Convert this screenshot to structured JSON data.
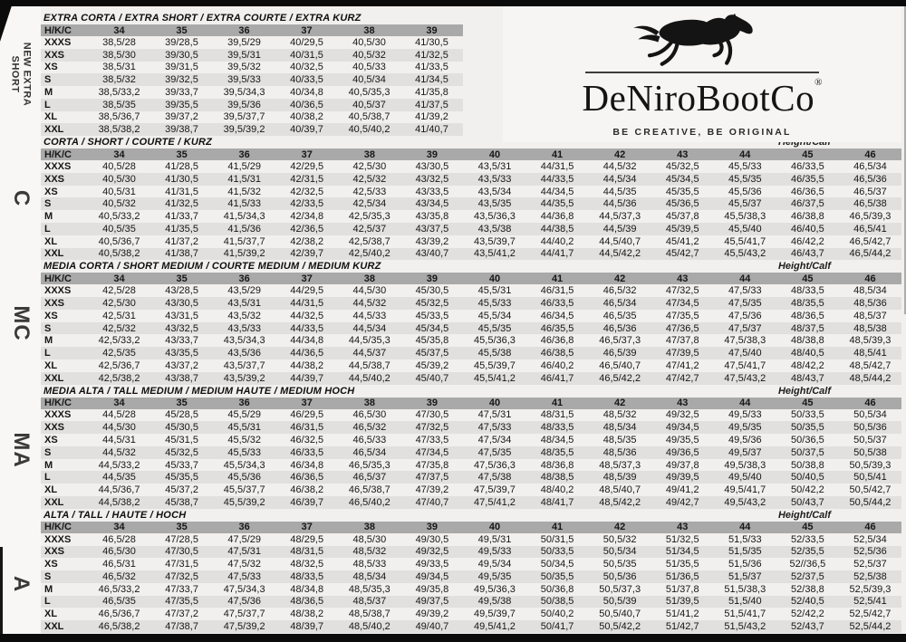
{
  "sidebar": {
    "items": [
      {
        "label": "NEW EXTRA SHORT",
        "line1": "NEW EXTRA",
        "line2": "SHORT"
      },
      {
        "label": "C"
      },
      {
        "label": "MC"
      },
      {
        "label": "MA"
      },
      {
        "label": "A"
      }
    ]
  },
  "logo": {
    "brand": "DeNiroBootCo",
    "registered": "®",
    "tagline": "BE CREATIVE, BE ORIGINAL"
  },
  "table": {
    "corner_label": "H/K/C",
    "row_labels": [
      "XXXS",
      "XXS",
      "XS",
      "S",
      "M",
      "L",
      "XL",
      "XXL"
    ],
    "sections": [
      {
        "title": "EXTRA CORTA / EXTRA SHORT / EXTRA COURTE / EXTRA KURZ",
        "height_calf": null,
        "sizes": [
          "34",
          "35",
          "36",
          "37",
          "38",
          "39"
        ],
        "rows": [
          {
            "label": "XXXS",
            "values": [
              "38,5/28",
              "39/28,5",
              "39,5/29",
              "40/29,5",
              "40,5/30",
              "41/30,5"
            ]
          },
          {
            "label": "XXS",
            "values": [
              "38,5/30",
              "39/30,5",
              "39,5/31",
              "40/31,5",
              "40,5/32",
              "41/32,5"
            ]
          },
          {
            "label": "XS",
            "values": [
              "38,5/31",
              "39/31,5",
              "39,5/32",
              "40/32,5",
              "40,5/33",
              "41/33,5"
            ]
          },
          {
            "label": "S",
            "values": [
              "38,5/32",
              "39/32,5",
              "39,5/33",
              "40/33,5",
              "40,5/34",
              "41/34,5"
            ]
          },
          {
            "label": "M",
            "values": [
              "38,5/33,2",
              "39/33,7",
              "39,5/34,3",
              "40/34,8",
              "40,5/35,3",
              "41/35,8"
            ]
          },
          {
            "label": "L",
            "values": [
              "38,5/35",
              "39/35,5",
              "39,5/36",
              "40/36,5",
              "40,5/37",
              "41/37,5"
            ]
          },
          {
            "label": "XL",
            "values": [
              "38,5/36,7",
              "39/37,2",
              "39,5/37,7",
              "40/38,2",
              "40,5/38,7",
              "41/39,2"
            ]
          },
          {
            "label": "XXL",
            "values": [
              "38,5/38,2",
              "39/38,7",
              "39,5/39,2",
              "40/39,7",
              "40,5/40,2",
              "41/40,7"
            ]
          }
        ]
      },
      {
        "title": "CORTA / SHORT / COURTE / KURZ",
        "height_calf": "Height/Calf",
        "sizes": [
          "34",
          "35",
          "36",
          "37",
          "38",
          "39",
          "40",
          "41",
          "42",
          "43",
          "44",
          "45",
          "46"
        ],
        "rows": [
          {
            "label": "XXXS",
            "values": [
              "40,5/28",
              "41/28,5",
              "41,5/29",
              "42/29,5",
              "42,5/30",
              "43/30,5",
              "43,5/31",
              "44/31,5",
              "44,5/32",
              "45/32,5",
              "45,5/33",
              "46/33,5",
              "46,5/34"
            ]
          },
          {
            "label": "XXS",
            "values": [
              "40,5/30",
              "41/30,5",
              "41,5/31",
              "42/31,5",
              "42,5/32",
              "43/32,5",
              "43,5/33",
              "44/33,5",
              "44,5/34",
              "45/34,5",
              "45,5/35",
              "46/35,5",
              "46,5/36"
            ]
          },
          {
            "label": "XS",
            "values": [
              "40,5/31",
              "41/31,5",
              "41,5/32",
              "42/32,5",
              "42,5/33",
              "43/33,5",
              "43,5/34",
              "44/34,5",
              "44,5/35",
              "45/35,5",
              "45,5/36",
              "46/36,5",
              "46,5/37"
            ]
          },
          {
            "label": "S",
            "values": [
              "40,5/32",
              "41/32,5",
              "41,5/33",
              "42/33,5",
              "42,5/34",
              "43/34,5",
              "43,5/35",
              "44/35,5",
              "44,5/36",
              "45/36,5",
              "45,5/37",
              "46/37,5",
              "46,5/38"
            ]
          },
          {
            "label": "M",
            "values": [
              "40,5/33,2",
              "41/33,7",
              "41,5/34,3",
              "42/34,8",
              "42,5/35,3",
              "43/35,8",
              "43,5/36,3",
              "44/36,8",
              "44,5/37,3",
              "45/37,8",
              "45,5/38,3",
              "46/38,8",
              "46,5/39,3"
            ]
          },
          {
            "label": "L",
            "values": [
              "40,5/35",
              "41/35,5",
              "41,5/36",
              "42/36,5",
              "42,5/37",
              "43/37,5",
              "43,5/38",
              "44/38,5",
              "44,5/39",
              "45/39,5",
              "45,5/40",
              "46/40,5",
              "46,5/41"
            ]
          },
          {
            "label": "XL",
            "values": [
              "40,5/36,7",
              "41/37,2",
              "41,5/37,7",
              "42/38,2",
              "42,5/38,7",
              "43/39,2",
              "43,5/39,7",
              "44/40,2",
              "44,5/40,7",
              "45/41,2",
              "45,5/41,7",
              "46/42,2",
              "46,5/42,7"
            ]
          },
          {
            "label": "XXL",
            "values": [
              "40,5/38,2",
              "41/38,7",
              "41,5/39,2",
              "42/39,7",
              "42,5/40,2",
              "43/40,7",
              "43,5/41,2",
              "44/41,7",
              "44,5/42,2",
              "45/42,7",
              "45,5/43,2",
              "46/43,7",
              "46,5/44,2"
            ]
          }
        ]
      },
      {
        "title": "MEDIA CORTA / SHORT MEDIUM / COURTE MEDIUM / MEDIUM KURZ",
        "height_calf": "Height/Calf",
        "sizes": [
          "34",
          "35",
          "36",
          "37",
          "38",
          "39",
          "40",
          "41",
          "42",
          "43",
          "44",
          "45",
          "46"
        ],
        "rows": [
          {
            "label": "XXXS",
            "values": [
              "42,5/28",
              "43/28,5",
              "43,5/29",
              "44/29,5",
              "44,5/30",
              "45/30,5",
              "45,5/31",
              "46/31,5",
              "46,5/32",
              "47/32,5",
              "47,5/33",
              "48/33,5",
              "48,5/34"
            ]
          },
          {
            "label": "XXS",
            "values": [
              "42,5/30",
              "43/30,5",
              "43,5/31",
              "44/31,5",
              "44,5/32",
              "45/32,5",
              "45,5/33",
              "46/33,5",
              "46,5/34",
              "47/34,5",
              "47,5/35",
              "48/35,5",
              "48,5/36"
            ]
          },
          {
            "label": "XS",
            "values": [
              "42,5/31",
              "43/31,5",
              "43,5/32",
              "44/32,5",
              "44,5/33",
              "45/33,5",
              "45,5/34",
              "46/34,5",
              "46,5/35",
              "47/35,5",
              "47,5/36",
              "48/36,5",
              "48,5/37"
            ]
          },
          {
            "label": "S",
            "values": [
              "42,5/32",
              "43/32,5",
              "43,5/33",
              "44/33,5",
              "44,5/34",
              "45/34,5",
              "45,5/35",
              "46/35,5",
              "46,5/36",
              "47/36,5",
              "47,5/37",
              "48/37,5",
              "48,5/38"
            ]
          },
          {
            "label": "M",
            "values": [
              "42,5/33,2",
              "43/33,7",
              "43,5/34,3",
              "44/34,8",
              "44,5/35,3",
              "45/35,8",
              "45,5/36,3",
              "46/36,8",
              "46,5/37,3",
              "47/37,8",
              "47,5/38,3",
              "48/38,8",
              "48,5/39,3"
            ]
          },
          {
            "label": "L",
            "values": [
              "42,5/35",
              "43/35,5",
              "43,5/36",
              "44/36,5",
              "44,5/37",
              "45/37,5",
              "45,5/38",
              "46/38,5",
              "46,5/39",
              "47/39,5",
              "47,5/40",
              "48/40,5",
              "48,5/41"
            ]
          },
          {
            "label": "XL",
            "values": [
              "42,5/36,7",
              "43/37,2",
              "43,5/37,7",
              "44/38,2",
              "44,5/38,7",
              "45/39,2",
              "45,5/39,7",
              "46/40,2",
              "46,5/40,7",
              "47/41,2",
              "47,5/41,7",
              "48/42,2",
              "48,5/42,7"
            ]
          },
          {
            "label": "XXL",
            "values": [
              "42,5/38,2",
              "43/38,7",
              "43,5/39,2",
              "44/39,7",
              "44,5/40,2",
              "45/40,7",
              "45,5/41,2",
              "46/41,7",
              "46,5/42,2",
              "47/42,7",
              "47,5/43,2",
              "48/43,7",
              "48,5/44,2"
            ]
          }
        ]
      },
      {
        "title": "MEDIA ALTA / TALL MEDIUM / MEDIUM HAUTE / MEDIUM HOCH",
        "height_calf": "Height/Calf",
        "sizes": [
          "34",
          "35",
          "36",
          "37",
          "38",
          "39",
          "40",
          "41",
          "42",
          "43",
          "44",
          "45",
          "46"
        ],
        "rows": [
          {
            "label": "XXXS",
            "values": [
              "44,5/28",
              "45/28,5",
              "45,5/29",
              "46/29,5",
              "46,5/30",
              "47/30,5",
              "47,5/31",
              "48/31,5",
              "48,5/32",
              "49/32,5",
              "49,5/33",
              "50/33,5",
              "50,5/34"
            ]
          },
          {
            "label": "XXS",
            "values": [
              "44,5/30",
              "45/30,5",
              "45,5/31",
              "46/31,5",
              "46,5/32",
              "47/32,5",
              "47,5/33",
              "48/33,5",
              "48,5/34",
              "49/34,5",
              "49,5/35",
              "50/35,5",
              "50,5/36"
            ]
          },
          {
            "label": "XS",
            "values": [
              "44,5/31",
              "45/31,5",
              "45,5/32",
              "46/32,5",
              "46,5/33",
              "47/33,5",
              "47,5/34",
              "48/34,5",
              "48,5/35",
              "49/35,5",
              "49,5/36",
              "50/36,5",
              "50,5/37"
            ]
          },
          {
            "label": "S",
            "values": [
              "44,5/32",
              "45/32,5",
              "45,5/33",
              "46/33,5",
              "46,5/34",
              "47/34,5",
              "47,5/35",
              "48/35,5",
              "48,5/36",
              "49/36,5",
              "49,5/37",
              "50/37,5",
              "50,5/38"
            ]
          },
          {
            "label": "M",
            "values": [
              "44,5/33,2",
              "45/33,7",
              "45,5/34,3",
              "46/34,8",
              "46,5/35,3",
              "47/35,8",
              "47,5/36,3",
              "48/36,8",
              "48,5/37,3",
              "49/37,8",
              "49,5/38,3",
              "50/38,8",
              "50,5/39,3"
            ]
          },
          {
            "label": "L",
            "values": [
              "44,5/35",
              "45/35,5",
              "45,5/36",
              "46/36,5",
              "46,5/37",
              "47/37,5",
              "47,5/38",
              "48/38,5",
              "48,5/39",
              "49/39,5",
              "49,5/40",
              "50/40,5",
              "50,5/41"
            ]
          },
          {
            "label": "XL",
            "values": [
              "44,5/36,7",
              "45/37,2",
              "45,5/37,7",
              "46/38,2",
              "46,5/38,7",
              "47/39,2",
              "47,5/39,7",
              "48/40,2",
              "48,5/40,7",
              "49/41,2",
              "49,5/41,7",
              "50/42,2",
              "50,5/42,7"
            ]
          },
          {
            "label": "XXL",
            "values": [
              "44,5/38,2",
              "45/38,7",
              "45,5/39,2",
              "46/39,7",
              "46,5/40,2",
              "47/40,7",
              "47,5/41,2",
              "48/41,7",
              "48,5/42,2",
              "49/42,7",
              "49,5/43,2",
              "50/43,7",
              "50,5/44,2"
            ]
          }
        ]
      },
      {
        "title": "ALTA / TALL / HAUTE / HOCH",
        "height_calf": "Height/Calf",
        "sizes": [
          "34",
          "35",
          "36",
          "37",
          "38",
          "39",
          "40",
          "41",
          "42",
          "43",
          "44",
          "45",
          "46"
        ],
        "rows": [
          {
            "label": "XXXS",
            "values": [
              "46,5/28",
              "47/28,5",
              "47,5/29",
              "48/29,5",
              "48,5/30",
              "49/30,5",
              "49,5/31",
              "50/31,5",
              "50,5/32",
              "51/32,5",
              "51,5/33",
              "52/33,5",
              "52,5/34"
            ]
          },
          {
            "label": "XXS",
            "values": [
              "46,5/30",
              "47/30,5",
              "47,5/31",
              "48/31,5",
              "48,5/32",
              "49/32,5",
              "49,5/33",
              "50/33,5",
              "50,5/34",
              "51/34,5",
              "51,5/35",
              "52/35,5",
              "52,5/36"
            ]
          },
          {
            "label": "XS",
            "values": [
              "46,5/31",
              "47/31,5",
              "47,5/32",
              "48/32,5",
              "48,5/33",
              "49/33,5",
              "49,5/34",
              "50/34,5",
              "50,5/35",
              "51/35,5",
              "51,5/36",
              "52//36,5",
              "52,5/37"
            ]
          },
          {
            "label": "S",
            "values": [
              "46,5/32",
              "47/32,5",
              "47,5/33",
              "48/33,5",
              "48,5/34",
              "49/34,5",
              "49,5/35",
              "50/35,5",
              "50,5/36",
              "51/36,5",
              "51,5/37",
              "52/37,5",
              "52,5/38"
            ]
          },
          {
            "label": "M",
            "values": [
              "46,5/33,2",
              "47/33,7",
              "47,5/34,3",
              "48/34,8",
              "48,5/35,3",
              "49/35,8",
              "49,5/36,3",
              "50/36,8",
              "50,5/37,3",
              "51/37,8",
              "51,5/38,3",
              "52/38,8",
              "52,5/39,3"
            ]
          },
          {
            "label": "L",
            "values": [
              "46,5/35",
              "47/35,5",
              "47,5/36",
              "48/36,5",
              "48,5/37",
              "49/37,5",
              "49,5/38",
              "50/38,5",
              "50,5/39",
              "51/39,5",
              "51,5/40",
              "52/40,5",
              "52,5/41"
            ]
          },
          {
            "label": "XL",
            "values": [
              "46,5/36,7",
              "47/37,2",
              "47,5/37,7",
              "48/38,2",
              "48,5/38,7",
              "49/39,2",
              "49,5/39,7",
              "50/40,2",
              "50,5/40,7",
              "51/41,2",
              "51,5/41,7",
              "52/42,2",
              "52,5/42,7"
            ]
          },
          {
            "label": "XXL",
            "values": [
              "46,5/38,2",
              "47/38,7",
              "47,5/39,2",
              "48/39,7",
              "48,5/40,2",
              "49/40,7",
              "49,5/41,2",
              "50/41,7",
              "50,5/42,2",
              "51/42,7",
              "51,5/43,2",
              "52/43,7",
              "52,5/44,2"
            ]
          }
        ]
      }
    ]
  }
}
